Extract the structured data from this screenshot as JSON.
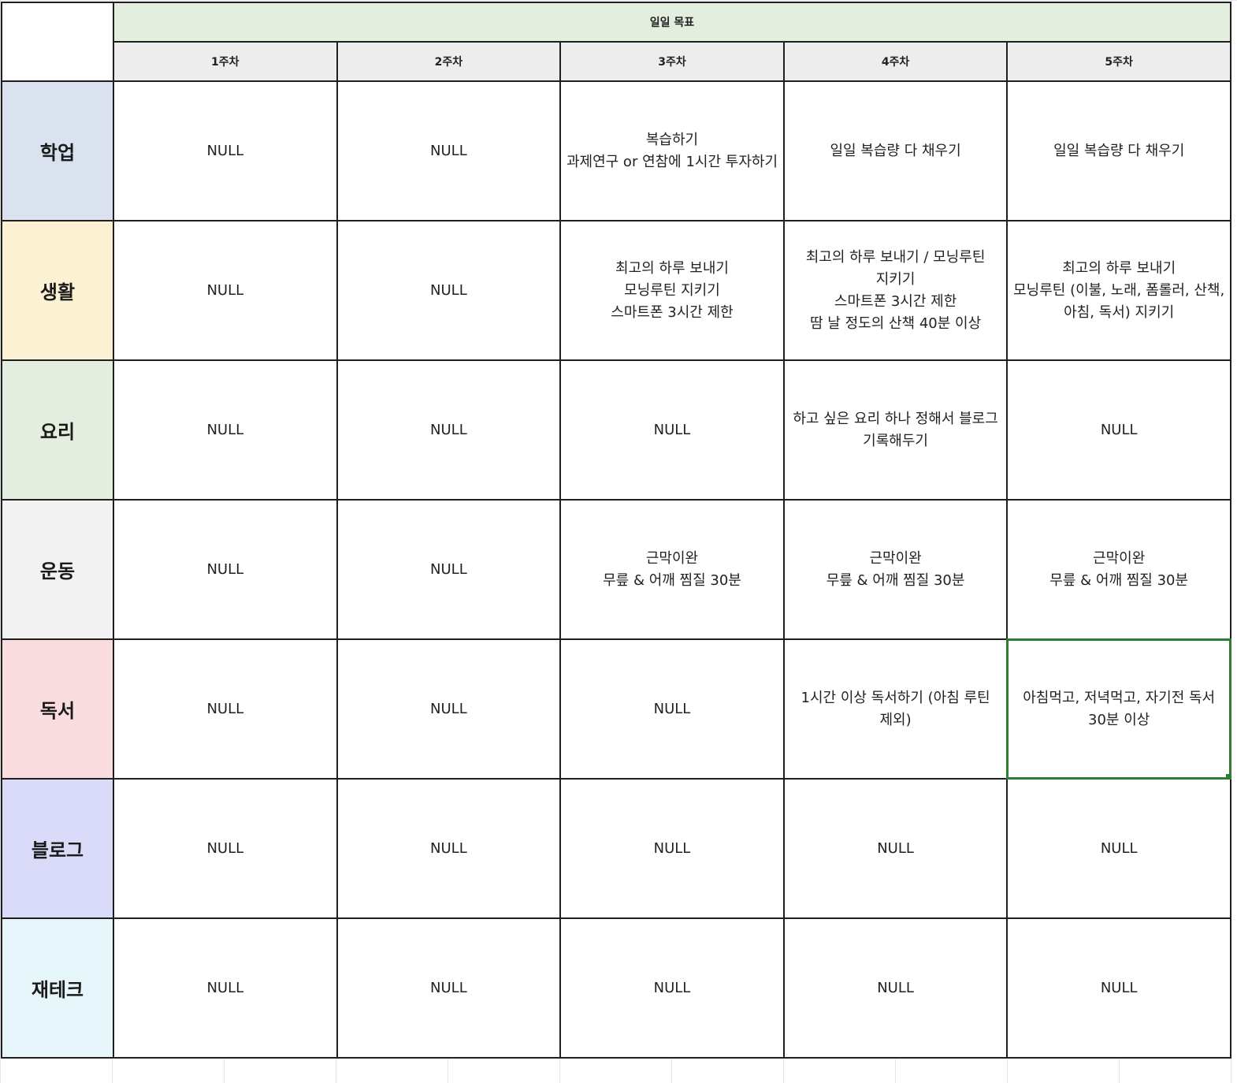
{
  "header": {
    "title": "일일 목표",
    "weeks": [
      "1주차",
      "2주차",
      "3주차",
      "4주차",
      "5주차"
    ]
  },
  "rows": [
    {
      "category": "학업",
      "color": "#dae2f0",
      "cells": [
        "NULL",
        "NULL",
        "복습하기\n과제연구 or 연참에 1시간 투자하기",
        "일일 복습량 다 채우기",
        "일일 복습량 다 채우기"
      ]
    },
    {
      "category": "생활",
      "color": "#fcf2d3",
      "cells": [
        "NULL",
        "NULL",
        "최고의 하루 보내기\n모닝루틴 지키기\n스마트폰 3시간 제한",
        "최고의 하루 보내기 / 모닝루틴 지키기\n스마트폰 3시간 제한\n땀 날 정도의 산책 40분 이상",
        "최고의 하루 보내기\n모닝루틴 (이불, 노래, 폼롤러, 산책, 아침, 독서) 지키기"
      ]
    },
    {
      "category": "요리",
      "color": "#e3eedf",
      "cells": [
        "NULL",
        "NULL",
        "NULL",
        "하고 싶은 요리 하나 정해서 블로그 기록해두기",
        "NULL"
      ]
    },
    {
      "category": "운동",
      "color": "#f2f2f2",
      "cells": [
        "NULL",
        "NULL",
        "근막이완\n무릎 & 어깨 찜질 30분",
        "근막이완\n무릎 & 어깨 찜질 30분",
        "근막이완\n무릎 & 어깨 찜질 30분"
      ]
    },
    {
      "category": "독서",
      "color": "#f9dddf",
      "cells": [
        "NULL",
        "NULL",
        "NULL",
        "1시간 이상 독서하기 (아침 루틴 제외)",
        "아침먹고, 저녁먹고, 자기전 독서 30분 이상"
      ]
    },
    {
      "category": "블로그",
      "color": "#dadbf8",
      "cells": [
        "NULL",
        "NULL",
        "NULL",
        "NULL",
        "NULL"
      ]
    },
    {
      "category": "재테크",
      "color": "#e6f6fb",
      "cells": [
        "NULL",
        "NULL",
        "NULL",
        "NULL",
        "NULL"
      ]
    }
  ],
  "selection": {
    "row": 4,
    "col": 4,
    "color": "#2e7d32"
  }
}
